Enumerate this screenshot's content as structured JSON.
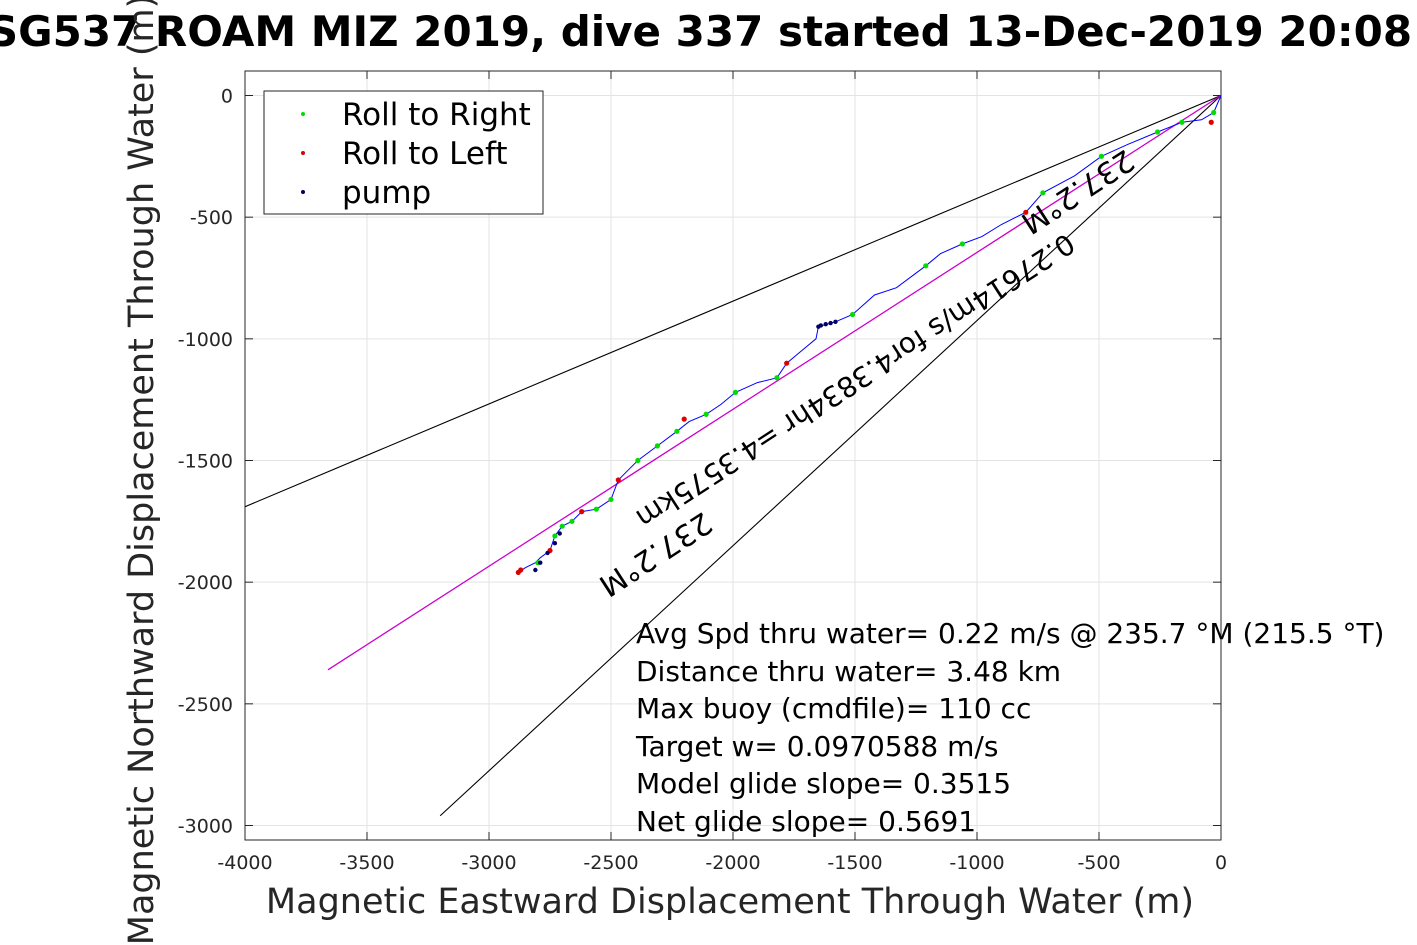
{
  "chart_data": {
    "type": "scatter",
    "title": "SG537 ROAM MIZ 2019, dive 337 started 13-Dec-2019 20:08",
    "xlabel": "Magnetic Eastward Displacement Through Water (m)",
    "ylabel": "Magnetic Northward Displacement Through Water (m)",
    "xlim": [
      -4000,
      0
    ],
    "ylim": [
      -3050,
      100
    ],
    "xticks": [
      "-4000",
      "-3500",
      "-3000",
      "-2500",
      "-2000",
      "-1500",
      "-1000",
      "-500",
      "0"
    ],
    "yticks": [
      "0",
      "-500",
      "-1000",
      "-1500",
      "-2000",
      "-2500",
      "-3000"
    ],
    "grid": true,
    "legend_position": "top-left",
    "series": [
      {
        "name": "Roll to Right",
        "color": "#00dd00",
        "x": [
          -30,
          -160,
          -260,
          -490,
          -730,
          -1060,
          -1210,
          -1510,
          -1820,
          -1990,
          -2110,
          -2230,
          -2310,
          -2390,
          -2500,
          -2560,
          -2660,
          -2700,
          -2730,
          -2800
        ],
        "y": [
          -70,
          -110,
          -150,
          -250,
          -400,
          -610,
          -700,
          -900,
          -1160,
          -1220,
          -1310,
          -1380,
          -1440,
          -1500,
          -1660,
          -1700,
          -1750,
          -1770,
          -1810,
          -1920
        ]
      },
      {
        "name": "Roll to Left",
        "color": "#dd0000",
        "x": [
          -40,
          -800,
          -1780,
          -2200,
          -2470,
          -2620,
          -2750,
          -2870,
          -2880
        ],
        "y": [
          -110,
          -480,
          -1100,
          -1330,
          -1580,
          -1710,
          -1870,
          -1950,
          -1960
        ]
      },
      {
        "name": "pump",
        "color": "#000066",
        "x": [
          -1580,
          -1600,
          -1620,
          -1640,
          -1650,
          -2710,
          -2730,
          -2760,
          -2790,
          -2810
        ],
        "y": [
          -930,
          -935,
          -940,
          -945,
          -950,
          -1800,
          -1840,
          -1880,
          -1920,
          -1950
        ]
      }
    ],
    "track": {
      "color": "#0000ff",
      "x": [
        0,
        -30,
        -80,
        -160,
        -260,
        -380,
        -490,
        -600,
        -730,
        -800,
        -900,
        -980,
        -1060,
        -1150,
        -1210,
        -1330,
        -1420,
        -1510,
        -1580,
        -1650,
        -1660,
        -1720,
        -1780,
        -1820,
        -1900,
        -1990,
        -2050,
        -2110,
        -2180,
        -2230,
        -2310,
        -2390,
        -2430,
        -2470,
        -2500,
        -2560,
        -2620,
        -2660,
        -2700,
        -2730,
        -2750,
        -2790,
        -2810,
        -2850,
        -2880
      ],
      "y": [
        0,
        -70,
        -100,
        -110,
        -150,
        -200,
        -250,
        -330,
        -400,
        -480,
        -530,
        -580,
        -610,
        -650,
        -700,
        -790,
        -820,
        -900,
        -930,
        -950,
        -1000,
        -1050,
        -1100,
        -1160,
        -1180,
        -1220,
        -1270,
        -1310,
        -1340,
        -1380,
        -1440,
        -1500,
        -1540,
        -1580,
        -1660,
        -1700,
        -1710,
        -1750,
        -1770,
        -1810,
        -1870,
        -1900,
        -1920,
        -1940,
        -1960
      ]
    },
    "lines": [
      {
        "name": "upper bound",
        "color": "#000000",
        "x": [
          0,
          -4000
        ],
        "y": [
          0,
          -1690
        ]
      },
      {
        "name": "lower bound",
        "color": "#000000",
        "x": [
          0,
          -3200
        ],
        "y": [
          0,
          -2960
        ]
      },
      {
        "name": "mean heading",
        "color": "#cc00cc",
        "x": [
          0,
          -3660
        ],
        "y": [
          0,
          -2360
        ]
      }
    ],
    "annotations": [
      {
        "text": "237.2°M",
        "x": -2340,
        "y": -1850,
        "angle": 147
      },
      {
        "text": "237.2°M",
        "x": -610,
        "y": -360,
        "angle": 147
      },
      {
        "text": "0.27614m/s for4.3834hr =4.3575km",
        "x": -1520,
        "y": -1140,
        "angle": 147
      }
    ],
    "stats": [
      "Avg Spd thru water=  0.22 m/s @ 235.7 °M (215.5 °T)",
      "Distance thru water=  3.48 km",
      "Max buoy (cmdfile)= 110 cc",
      "Target w= 0.0970588 m/s",
      "Model glide slope= 0.3515",
      "Net glide slope= 0.5691"
    ]
  }
}
